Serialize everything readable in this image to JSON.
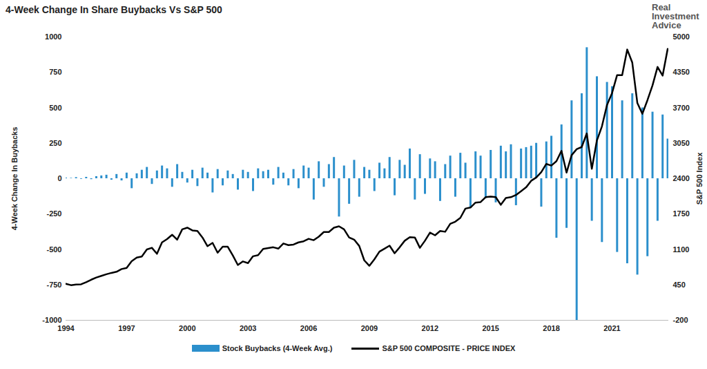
{
  "chart_data": {
    "type": "bar",
    "title": "4-Week Change In Share Buybacks Vs S&P 500",
    "logo_text": "Real Investment Advice",
    "ylabel": "4-Week Change In Buybacks",
    "y2label": "S&P 500 Index",
    "grid": false,
    "legend": "bottom",
    "xlim": [
      1994,
      2023.8
    ],
    "xticks": [
      1994,
      1997,
      2000,
      2003,
      2006,
      2009,
      2012,
      2015,
      2018,
      2021
    ],
    "ylim": [
      -1000,
      1000
    ],
    "yticks": [
      -1000,
      -750,
      -500,
      -250,
      0,
      250,
      500,
      750,
      1000
    ],
    "y2lim": [
      -200,
      5000
    ],
    "y2ticks": [
      -200,
      450,
      1100,
      1750,
      2400,
      3050,
      3700,
      4350,
      5000
    ],
    "x": [
      1994,
      1994.25,
      1994.5,
      1994.75,
      1995,
      1995.25,
      1995.5,
      1995.75,
      1996,
      1996.25,
      1996.5,
      1996.75,
      1997,
      1997.25,
      1997.5,
      1997.75,
      1998,
      1998.25,
      1998.5,
      1998.75,
      1999,
      1999.25,
      1999.5,
      1999.75,
      2000,
      2000.25,
      2000.5,
      2000.75,
      2001,
      2001.25,
      2001.5,
      2001.75,
      2002,
      2002.25,
      2002.5,
      2002.75,
      2003,
      2003.25,
      2003.5,
      2003.75,
      2004,
      2004.25,
      2004.5,
      2004.75,
      2005,
      2005.25,
      2005.5,
      2005.75,
      2006,
      2006.25,
      2006.5,
      2006.75,
      2007,
      2007.25,
      2007.5,
      2007.75,
      2008,
      2008.25,
      2008.5,
      2008.75,
      2009,
      2009.25,
      2009.5,
      2009.75,
      2010,
      2010.25,
      2010.5,
      2010.75,
      2011,
      2011.25,
      2011.5,
      2011.75,
      2012,
      2012.25,
      2012.5,
      2012.75,
      2013,
      2013.25,
      2013.5,
      2013.75,
      2014,
      2014.25,
      2014.5,
      2014.75,
      2015,
      2015.25,
      2015.5,
      2015.75,
      2016,
      2016.25,
      2016.5,
      2016.75,
      2017,
      2017.25,
      2017.5,
      2017.75,
      2018,
      2018.25,
      2018.5,
      2018.75,
      2019,
      2019.25,
      2019.5,
      2019.75,
      2020,
      2020.25,
      2020.5,
      2020.75,
      2021,
      2021.25,
      2021.5,
      2021.75,
      2022,
      2022.25,
      2022.5,
      2022.75,
      2023,
      2023.25,
      2023.5,
      2023.75
    ],
    "series": [
      {
        "name": "Stock Buybacks (4-Week Avg.)",
        "type": "bar",
        "color": "#2b8fcc",
        "values": [
          5,
          3,
          8,
          -4,
          10,
          -6,
          15,
          20,
          25,
          -10,
          30,
          -15,
          40,
          -70,
          35,
          60,
          80,
          -40,
          55,
          90,
          70,
          -60,
          100,
          45,
          -30,
          60,
          -55,
          75,
          40,
          -100,
          65,
          -50,
          55,
          30,
          -80,
          60,
          45,
          -90,
          70,
          50,
          60,
          -45,
          80,
          40,
          -50,
          65,
          -70,
          90,
          75,
          -150,
          120,
          -60,
          100,
          150,
          -270,
          90,
          -180,
          130,
          -130,
          80,
          60,
          -90,
          110,
          70,
          150,
          -120,
          130,
          95,
          210,
          -150,
          170,
          -110,
          140,
          120,
          -160,
          100,
          160,
          -130,
          180,
          110,
          -210,
          190,
          160,
          -140,
          200,
          -170,
          230,
          190,
          240,
          -190,
          210,
          220,
          230,
          250,
          -200,
          260,
          300,
          -420,
          380,
          -350,
          550,
          -1000,
          600,
          925,
          -300,
          720,
          -450,
          680,
          650,
          -520,
          550,
          -600,
          600,
          -680,
          500,
          -550,
          470,
          -300,
          450,
          280
        ]
      },
      {
        "name": "S&P 500 COMPOSITE - PRICE INDEX",
        "type": "line",
        "axis": "y2",
        "color": "#000000",
        "values": [
          470,
          445,
          455,
          460,
          500,
          545,
          585,
          615,
          645,
          670,
          690,
          740,
          760,
          885,
          950,
          970,
          1100,
          1130,
          1020,
          1230,
          1290,
          1370,
          1280,
          1470,
          1500,
          1450,
          1440,
          1320,
          1160,
          1220,
          1040,
          1150,
          1150,
          990,
          815,
          880,
          850,
          975,
          995,
          1110,
          1125,
          1140,
          1115,
          1210,
          1180,
          1190,
          1230,
          1250,
          1295,
          1270,
          1335,
          1420,
          1420,
          1500,
          1525,
          1470,
          1320,
          1280,
          1165,
          900,
          800,
          920,
          1060,
          1115,
          1170,
          1030,
          1140,
          1260,
          1325,
          1320,
          1130,
          1260,
          1410,
          1360,
          1440,
          1425,
          1570,
          1610,
          1680,
          1850,
          1870,
          1960,
          1970,
          2060,
          2070,
          2060,
          1920,
          2045,
          2060,
          2100,
          2170,
          2240,
          2360,
          2420,
          2520,
          2670,
          2640,
          2720,
          2910,
          2510,
          2830,
          2940,
          2980,
          3230,
          2580,
          3100,
          3360,
          3750,
          3970,
          4300,
          4300,
          4770,
          4530,
          3790,
          3590,
          3840,
          4110,
          4450,
          4290,
          4780
        ]
      }
    ]
  }
}
